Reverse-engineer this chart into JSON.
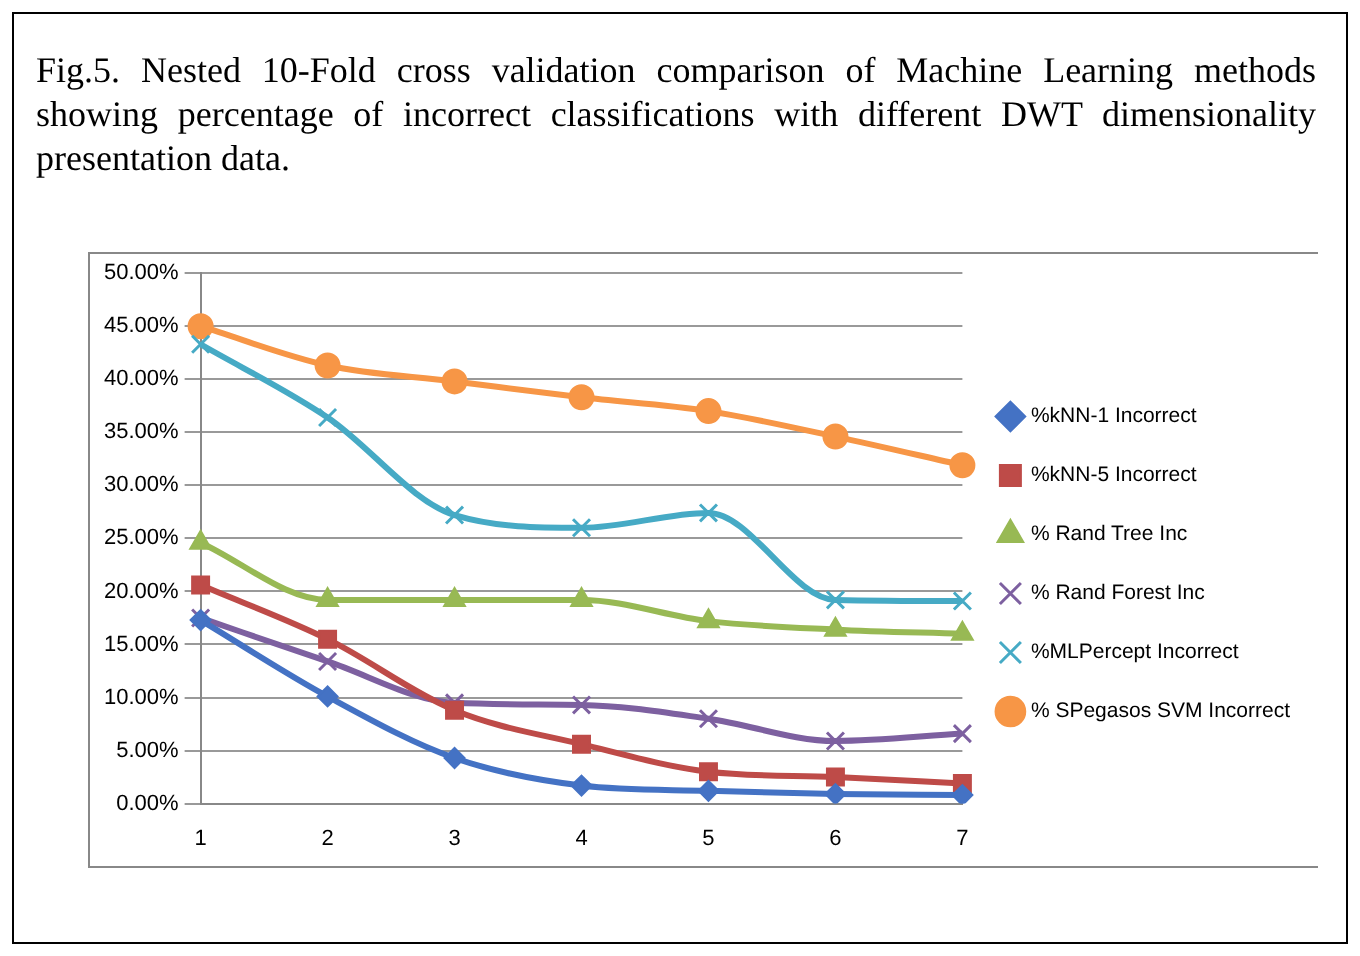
{
  "chart_data": {
    "type": "line",
    "title": "Fig.5. Nested 10-Fold cross validation comparison of Machine Learning methods showing percentage of incorrect classifications with different DWT dimensionality presentation data.",
    "categories": [
      "1",
      "2",
      "3",
      "4",
      "5",
      "6",
      "7"
    ],
    "series": [
      {
        "name": "%kNN-1 Incorrect",
        "color": "#4472c4",
        "marker": "diamond",
        "values": [
          17.3,
          10.1,
          4.3,
          1.7,
          1.2,
          0.9,
          0.8
        ]
      },
      {
        "name": "%kNN-5 Incorrect",
        "color": "#be4b48",
        "marker": "square",
        "values": [
          20.6,
          15.5,
          8.8,
          5.6,
          3.0,
          2.5,
          1.9
        ]
      },
      {
        "name": "% Rand Tree Inc",
        "color": "#98b954",
        "marker": "triangle",
        "values": [
          24.6,
          19.2,
          19.2,
          19.2,
          17.2,
          16.4,
          16.0
        ]
      },
      {
        "name": "% Rand Forest Inc",
        "color": "#7d60a0",
        "marker": "cross",
        "values": [
          17.5,
          13.4,
          9.5,
          9.3,
          8.0,
          5.9,
          6.6
        ]
      },
      {
        "name": "%MLPercept Incorrect",
        "color": "#46aac5",
        "marker": "cross",
        "values": [
          43.3,
          36.4,
          27.2,
          26.0,
          27.4,
          19.2,
          19.1
        ]
      },
      {
        "name": "% SPegasos SVM Incorrect",
        "color": "#f79646",
        "marker": "circle",
        "values": [
          45.0,
          41.3,
          39.8,
          38.3,
          37.0,
          34.6,
          31.9
        ]
      }
    ],
    "ylim": [
      0,
      50
    ],
    "yticks": [
      {
        "value": 0,
        "label": "0.00%"
      },
      {
        "value": 5,
        "label": "5.00%"
      },
      {
        "value": 10,
        "label": "10.00%"
      },
      {
        "value": 15,
        "label": "15.00%"
      },
      {
        "value": 20,
        "label": "20.00%"
      },
      {
        "value": 25,
        "label": "25.00%"
      },
      {
        "value": 30,
        "label": "30.00%"
      },
      {
        "value": 35,
        "label": "35.00%"
      },
      {
        "value": 40,
        "label": "40.00%"
      },
      {
        "value": 45,
        "label": "45.00%"
      },
      {
        "value": 50,
        "label": "50.00%"
      }
    ],
    "grid": "y",
    "legend": "right"
  }
}
